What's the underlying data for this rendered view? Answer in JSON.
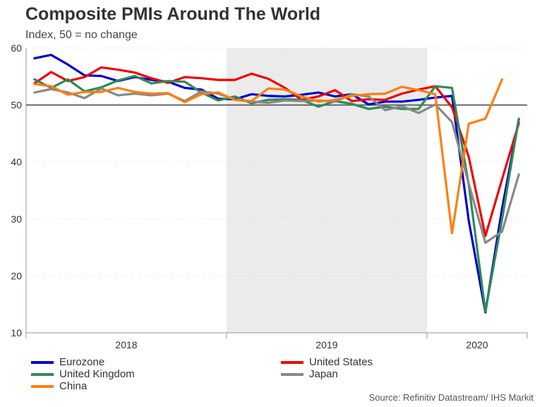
{
  "title": "Composite PMIs Around The World",
  "subtitle": "Index, 50 = no change",
  "source": "Source: Refinitiv Datastream/ IHS Markit",
  "chart_data": {
    "type": "line",
    "title": "Composite PMIs Around The World",
    "ylabel": "Index, 50 = no change",
    "xlabel": "",
    "ylim": [
      10,
      60
    ],
    "yticks": [
      10,
      20,
      30,
      40,
      50,
      60
    ],
    "reference_line": 50,
    "grid": true,
    "x": [
      "2018-01",
      "2018-02",
      "2018-03",
      "2018-04",
      "2018-05",
      "2018-06",
      "2018-07",
      "2018-08",
      "2018-09",
      "2018-10",
      "2018-11",
      "2018-12",
      "2019-01",
      "2019-02",
      "2019-03",
      "2019-04",
      "2019-05",
      "2019-06",
      "2019-07",
      "2019-08",
      "2019-09",
      "2019-10",
      "2019-11",
      "2019-12",
      "2020-01",
      "2020-02",
      "2020-03",
      "2020-04",
      "2020-05",
      "2020-06"
    ],
    "year_labels": [
      {
        "label": "2018",
        "start": 0,
        "end": 12
      },
      {
        "label": "2019",
        "start": 12,
        "end": 24
      },
      {
        "label": "2020",
        "start": 24,
        "end": 30
      }
    ],
    "shaded_region": {
      "start": 12,
      "end": 24
    },
    "series": [
      {
        "name": "Eurozone",
        "color": "#0000cc",
        "values": [
          58.2,
          58.8,
          57.1,
          55.2,
          55.1,
          54.2,
          54.9,
          54.4,
          54.1,
          53.0,
          52.7,
          51.1,
          51.0,
          51.9,
          51.6,
          51.5,
          51.8,
          52.2,
          51.5,
          51.9,
          50.1,
          50.6,
          50.6,
          50.9,
          51.3,
          51.6,
          29.7,
          13.6,
          31.9,
          47.5
        ]
      },
      {
        "name": "United States",
        "color": "#ee0000",
        "values": [
          53.8,
          55.8,
          54.2,
          54.9,
          56.6,
          56.2,
          55.7,
          54.7,
          53.9,
          54.9,
          54.7,
          54.4,
          54.4,
          55.5,
          54.6,
          53.0,
          50.9,
          51.5,
          52.6,
          50.7,
          51.0,
          50.9,
          52.0,
          52.7,
          53.3,
          49.6,
          40.9,
          27.0,
          37.0,
          46.8
        ]
      },
      {
        "name": "United Kingdom",
        "color": "#2e8b57",
        "values": [
          54.5,
          53.0,
          54.5,
          52.4,
          53.1,
          54.3,
          55.1,
          53.8,
          54.2,
          54.1,
          52.2,
          50.8,
          51.5,
          50.3,
          50.9,
          51.0,
          50.9,
          49.7,
          50.7,
          50.2,
          49.3,
          49.7,
          49.3,
          49.3,
          53.3,
          53.0,
          36.0,
          13.8,
          30.0,
          47.6
        ]
      },
      {
        "name": "Japan",
        "color": "#888888",
        "values": [
          52.2,
          52.8,
          52.2,
          51.2,
          52.9,
          51.7,
          52.0,
          51.7,
          52.0,
          50.7,
          52.4,
          52.0,
          50.9,
          50.6,
          50.4,
          50.8,
          50.7,
          50.8,
          50.6,
          51.9,
          51.5,
          49.1,
          49.8,
          48.6,
          50.1,
          47.0,
          36.2,
          25.8,
          27.8,
          37.8
        ]
      },
      {
        "name": "China",
        "color": "#ff7f0e",
        "values": [
          53.7,
          53.3,
          51.8,
          52.3,
          52.3,
          53.0,
          52.3,
          52.0,
          52.1,
          50.5,
          51.9,
          52.2,
          50.9,
          50.7,
          52.9,
          52.7,
          51.5,
          50.6,
          50.9,
          51.6,
          51.9,
          52.0,
          53.2,
          52.6,
          51.9,
          27.5,
          46.7,
          47.6,
          54.5,
          null
        ]
      }
    ]
  }
}
